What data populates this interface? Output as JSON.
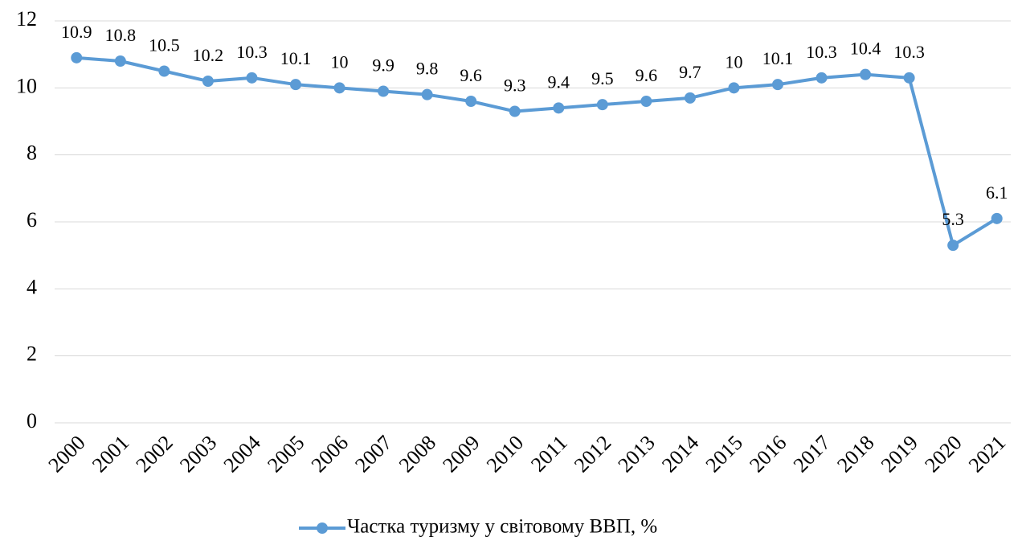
{
  "chart_data": {
    "type": "line",
    "categories": [
      "2000",
      "2001",
      "2002",
      "2003",
      "2004",
      "2005",
      "2006",
      "2007",
      "2008",
      "2009",
      "2010",
      "2011",
      "2012",
      "2013",
      "2014",
      "2015",
      "2016",
      "2017",
      "2018",
      "2019",
      "2020",
      "2021"
    ],
    "series": [
      {
        "name": "Частка туризму у світовому ВВП, %",
        "color": "#5b9bd5",
        "values": [
          10.9,
          10.8,
          10.5,
          10.2,
          10.3,
          10.1,
          10,
          9.9,
          9.8,
          9.6,
          9.3,
          9.4,
          9.5,
          9.6,
          9.7,
          10,
          10.1,
          10.3,
          10.4,
          10.3,
          5.3,
          6.1
        ]
      }
    ],
    "ylim": [
      0,
      12
    ],
    "yticks": [
      0,
      2,
      4,
      6,
      8,
      10,
      12
    ],
    "grid": true,
    "legend": "bottom",
    "data_labels": true
  }
}
